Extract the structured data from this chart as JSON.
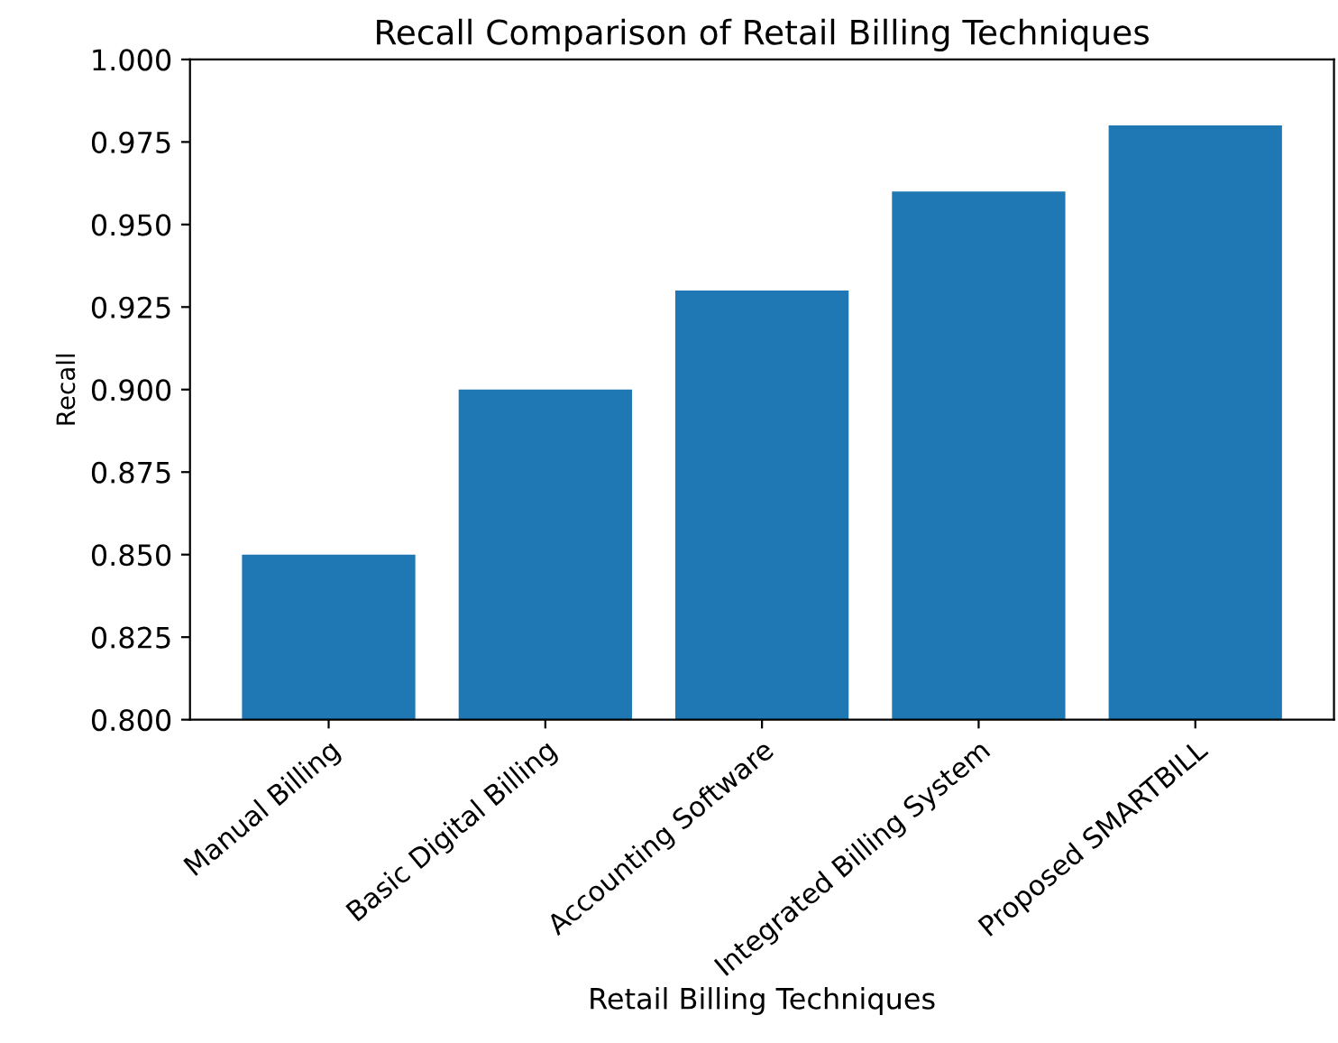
{
  "chart_data": {
    "type": "bar",
    "title": "Recall Comparison of Retail Billing Techniques",
    "xlabel": "Retail Billing Techniques",
    "ylabel": "Recall",
    "categories": [
      "Manual Billing",
      "Basic Digital Billing",
      "Accounting Software",
      "Integrated Billing System",
      "Proposed SMARTBILL"
    ],
    "values": [
      0.85,
      0.9,
      0.93,
      0.96,
      0.98
    ],
    "color": "#1f77b4",
    "ylim": [
      0.8,
      1.0
    ],
    "yticks": [
      {
        "value": 0.8,
        "label": "0.800"
      },
      {
        "value": 0.825,
        "label": "0.825"
      },
      {
        "value": 0.85,
        "label": "0.850"
      },
      {
        "value": 0.875,
        "label": "0.875"
      },
      {
        "value": 0.9,
        "label": "0.900"
      },
      {
        "value": 0.925,
        "label": "0.925"
      },
      {
        "value": 0.95,
        "label": "0.950"
      },
      {
        "value": 0.975,
        "label": "0.975"
      },
      {
        "value": 1.0,
        "label": "1.000"
      }
    ],
    "grid": false
  }
}
